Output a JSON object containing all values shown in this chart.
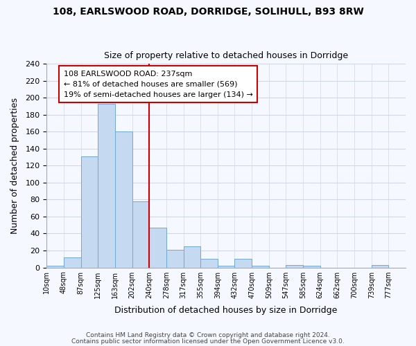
{
  "title1": "108, EARLSWOOD ROAD, DORRIDGE, SOLIHULL, B93 8RW",
  "title2": "Size of property relative to detached houses in Dorridge",
  "xlabel": "Distribution of detached houses by size in Dorridge",
  "ylabel": "Number of detached properties",
  "bin_labels": [
    "10sqm",
    "48sqm",
    "87sqm",
    "125sqm",
    "163sqm",
    "202sqm",
    "240sqm",
    "278sqm",
    "317sqm",
    "355sqm",
    "394sqm",
    "432sqm",
    "470sqm",
    "509sqm",
    "547sqm",
    "585sqm",
    "624sqm",
    "662sqm",
    "700sqm",
    "739sqm",
    "777sqm"
  ],
  "bar_heights": [
    2,
    12,
    131,
    193,
    160,
    78,
    47,
    21,
    25,
    10,
    2,
    10,
    2,
    0,
    3,
    2,
    0,
    0,
    0,
    3,
    0
  ],
  "bar_color": "#c5d9f0",
  "bar_edge_color": "#6fa8d4",
  "vline_label_index": 6,
  "vline_color": "#cc0000",
  "annotation_text": "108 EARLSWOOD ROAD: 237sqm\n← 81% of detached houses are smaller (569)\n19% of semi-detached houses are larger (134) →",
  "annotation_box_color": "#ffffff",
  "annotation_box_edge": "#cc0000",
  "ylim": [
    0,
    240
  ],
  "yticks": [
    0,
    20,
    40,
    60,
    80,
    100,
    120,
    140,
    160,
    180,
    200,
    220,
    240
  ],
  "footer1": "Contains HM Land Registry data © Crown copyright and database right 2024.",
  "footer2": "Contains public sector information licensed under the Open Government Licence v3.0.",
  "bg_color": "#f5f8ff",
  "grid_color": "#d0d8e8",
  "fig_bg_color": "#f5f8ff"
}
